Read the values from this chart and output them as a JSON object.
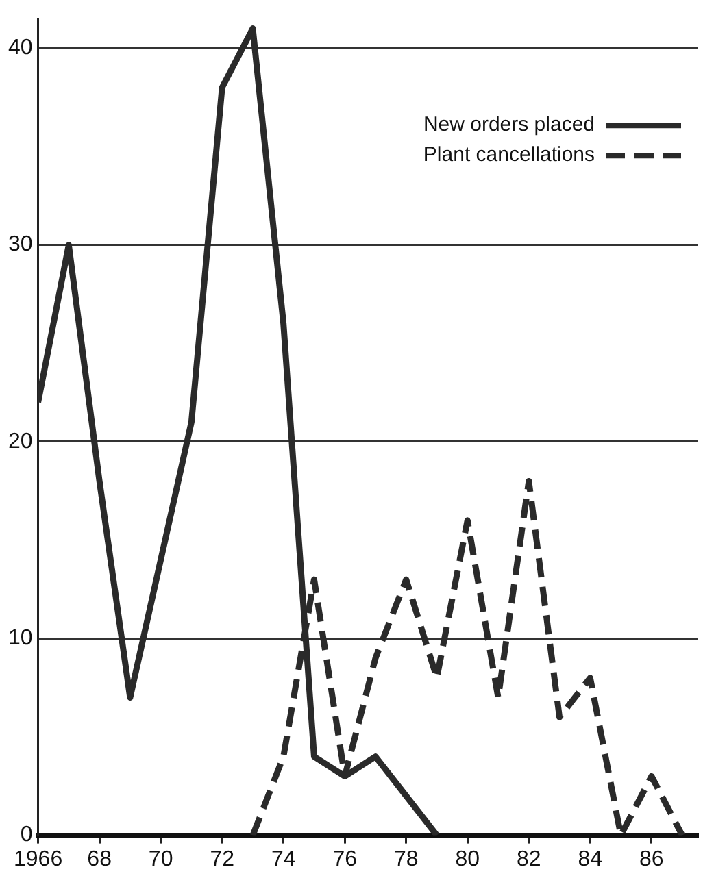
{
  "chart_data": {
    "type": "line",
    "x": [
      1966,
      1967,
      1968,
      1969,
      1970,
      1971,
      1972,
      1973,
      1974,
      1975,
      1976,
      1977,
      1978,
      1979,
      1980,
      1981,
      1982,
      1983,
      1984,
      1985,
      1986,
      1987
    ],
    "series": [
      {
        "name": "New orders placed",
        "color": "#2a2a2a",
        "line_style": "solid",
        "values": [
          22,
          30,
          18,
          7,
          14,
          21,
          38,
          41,
          26,
          4,
          3,
          4,
          2,
          0,
          null,
          null,
          null,
          null,
          null,
          null,
          null,
          null
        ]
      },
      {
        "name": "Plant cancellations",
        "color": "#2a2a2a",
        "line_style": "dashed",
        "values": [
          null,
          null,
          null,
          null,
          null,
          null,
          null,
          0,
          4,
          13,
          3,
          9,
          13,
          8,
          16,
          7,
          18,
          6,
          8,
          0,
          3,
          0
        ]
      }
    ],
    "xlim": [
      1966,
      1987.5
    ],
    "xticks": [
      {
        "value": 1966,
        "label": "1966"
      },
      {
        "value": 1968,
        "label": "68"
      },
      {
        "value": 1970,
        "label": "70"
      },
      {
        "value": 1972,
        "label": "72"
      },
      {
        "value": 1974,
        "label": "74"
      },
      {
        "value": 1976,
        "label": "76"
      },
      {
        "value": 1978,
        "label": "78"
      },
      {
        "value": 1980,
        "label": "80"
      },
      {
        "value": 1982,
        "label": "82"
      },
      {
        "value": 1984,
        "label": "84"
      },
      {
        "value": 1986,
        "label": "86"
      }
    ],
    "ylim": [
      0,
      41.5
    ],
    "yticks": [
      0,
      10,
      20,
      30,
      40
    ],
    "grid": "y",
    "legend": "top right",
    "marker": "none"
  }
}
